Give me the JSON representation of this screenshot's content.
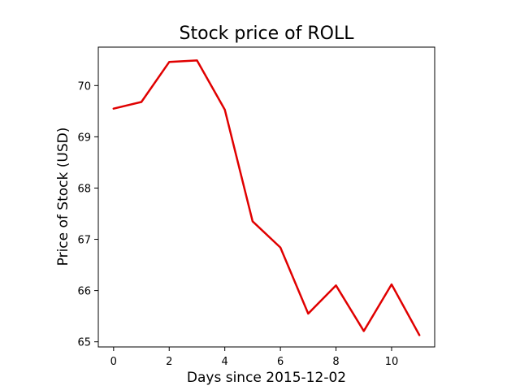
{
  "chart_data": {
    "type": "line",
    "title": "Stock price of ROLL",
    "xlabel": "Days since 2015-12-02",
    "ylabel": "Price of Stock (USD)",
    "x": [
      0,
      1,
      2,
      3,
      4,
      5,
      6,
      7,
      8,
      9,
      10,
      11
    ],
    "series": [
      {
        "values": [
          69.55,
          69.68,
          70.46,
          70.49,
          69.53,
          67.35,
          66.84,
          65.55,
          66.1,
          65.21,
          66.12,
          65.13
        ],
        "color": "#e00000"
      }
    ],
    "xlim": [
      -0.55,
      11.55
    ],
    "ylim": [
      64.9,
      70.75
    ],
    "xticks": [
      0,
      2,
      4,
      6,
      8,
      10
    ],
    "yticks": [
      65,
      66,
      67,
      68,
      69,
      70
    ],
    "xtick_labels": [
      "0",
      "2",
      "4",
      "6",
      "8",
      "10"
    ],
    "ytick_labels": [
      "65",
      "66",
      "67",
      "68",
      "69",
      "70"
    ],
    "grid": false,
    "legend": "none"
  }
}
